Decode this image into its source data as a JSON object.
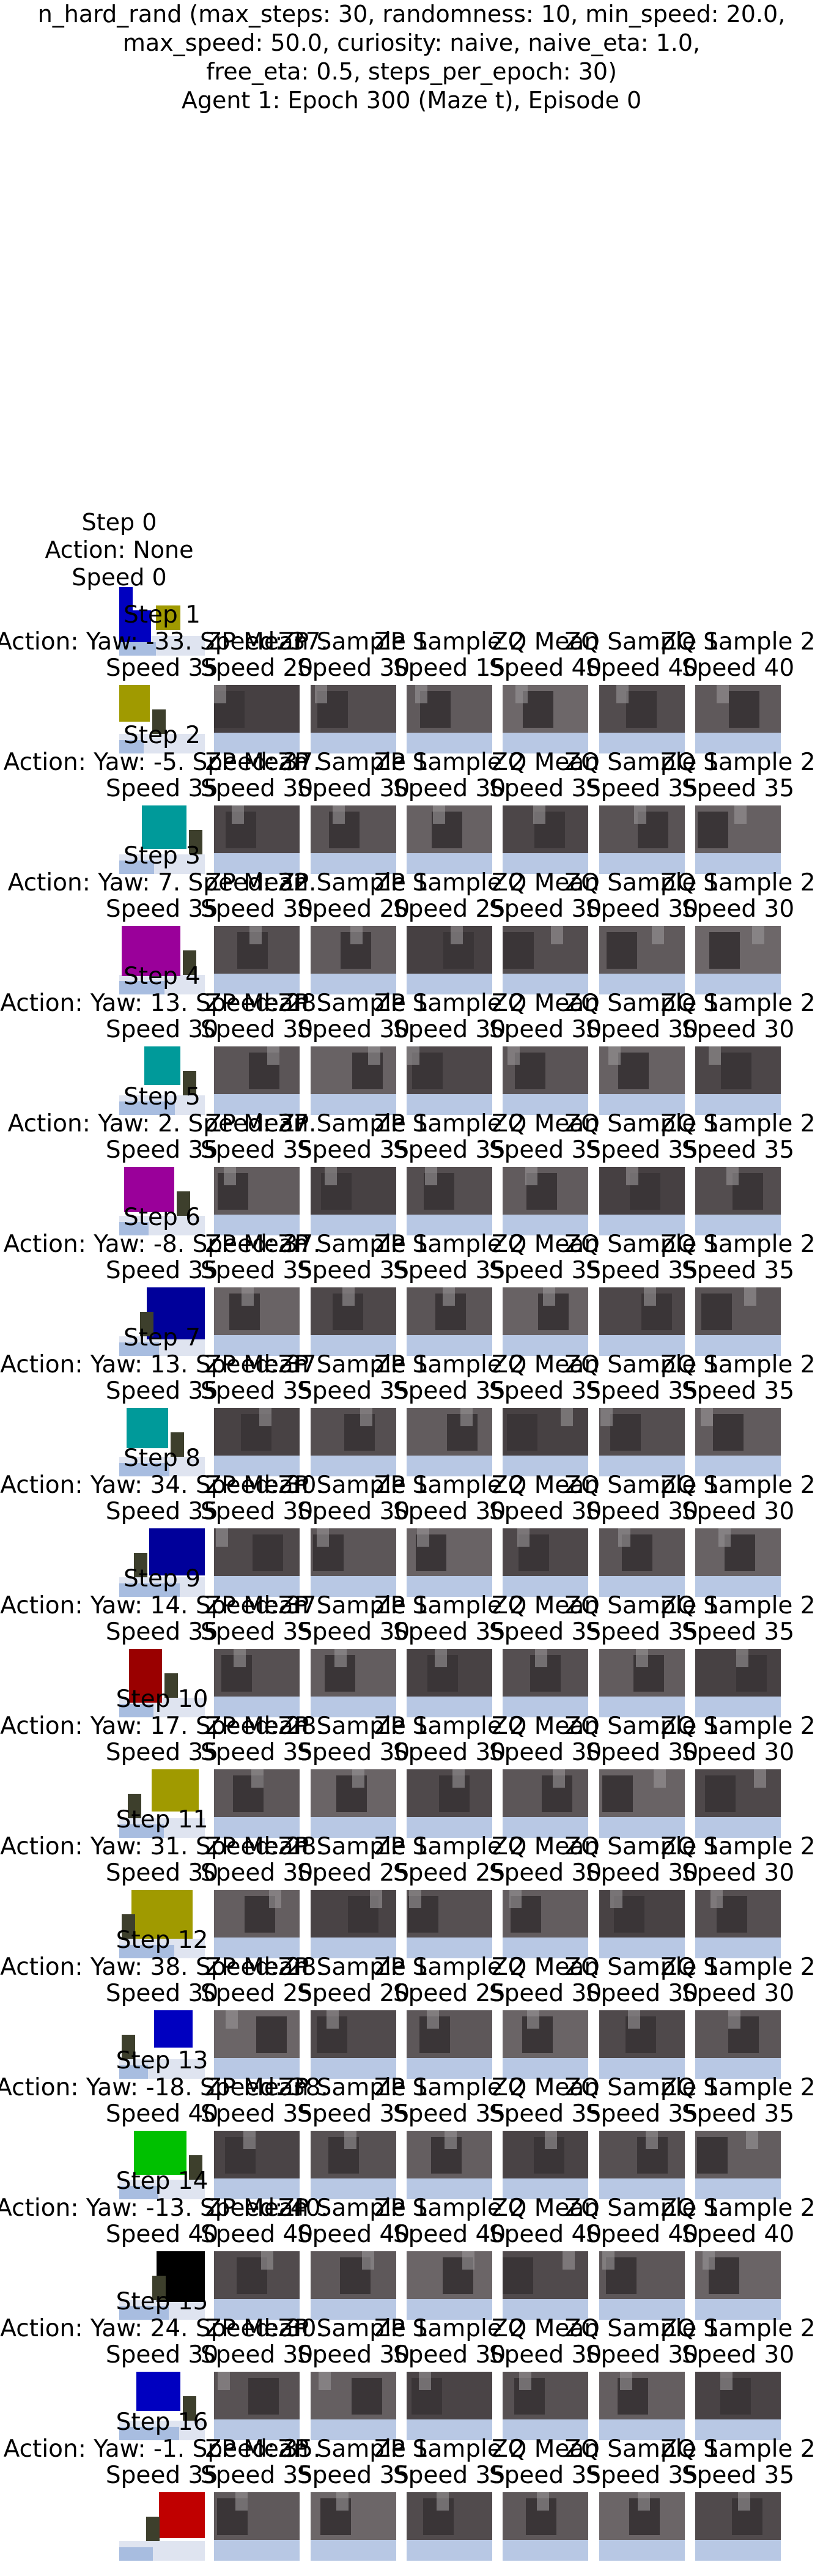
{
  "title": {
    "line1": "n_hard_rand (max_steps: 30, randomness: 10, min_speed: 20.0,",
    "line2": "max_speed: 50.0, curiosity: naive, naive_eta: 1.0,",
    "line3": "free_eta: 0.5, steps_per_epoch: 30)",
    "line4": "Agent 1: Epoch 300 (Maze t), Episode 0"
  },
  "initial": {
    "step": "Step 0",
    "action": "Action: None",
    "speed": "Speed 0"
  },
  "panel_labels": [
    "ZP Mean",
    "ZP Sample 1",
    "ZP Sample 2",
    "ZQ Mean",
    "ZQ Sample 1",
    "ZQ Sample 2"
  ],
  "steps": [
    {
      "step": "Step 1",
      "action": "Action: Yaw: -33. Speed: 37.",
      "speed": "Speed 35",
      "preds": [
        "Speed 20",
        "Speed 30",
        "Speed 15",
        "Speed 40",
        "Speed 40",
        "Speed 40"
      ],
      "block_color": "#a09a00"
    },
    {
      "step": "Step 2",
      "action": "Action: Yaw: -5. Speed: 37.",
      "speed": "Speed 35",
      "preds": [
        "Speed 30",
        "Speed 30",
        "Speed 30",
        "Speed 35",
        "Speed 35",
        "Speed 35"
      ],
      "block_color": "#009a9a"
    },
    {
      "step": "Step 3",
      "action": "Action: Yaw: 7. Speed: 32.",
      "speed": "Speed 35",
      "preds": [
        "Speed 30",
        "Speed 20",
        "Speed 25",
        "Speed 30",
        "Speed 30",
        "Speed 30"
      ],
      "block_color": "#9a009a"
    },
    {
      "step": "Step 4",
      "action": "Action: Yaw: 13. Speed: 28.",
      "speed": "Speed 30",
      "preds": [
        "Speed 30",
        "Speed 30",
        "Speed 30",
        "Speed 30",
        "Speed 30",
        "Speed 30"
      ],
      "block_color": "#009a9a"
    },
    {
      "step": "Step 5",
      "action": "Action: Yaw: 2. Speed: 37.",
      "speed": "Speed 35",
      "preds": [
        "Speed 35",
        "Speed 35",
        "Speed 35",
        "Speed 35",
        "Speed 35",
        "Speed 35"
      ],
      "block_color": "#9a009a"
    },
    {
      "step": "Step 6",
      "action": "Action: Yaw: -8. Speed: 37.",
      "speed": "Speed 35",
      "preds": [
        "Speed 35",
        "Speed 35",
        "Speed 35",
        "Speed 35",
        "Speed 35",
        "Speed 35"
      ],
      "block_color": "#00009a"
    },
    {
      "step": "Step 7",
      "action": "Action: Yaw: 13. Speed: 37.",
      "speed": "Speed 35",
      "preds": [
        "Speed 35",
        "Speed 35",
        "Speed 35",
        "Speed 35",
        "Speed 35",
        "Speed 35"
      ],
      "block_color": "#009a9a"
    },
    {
      "step": "Step 8",
      "action": "Action: Yaw: 34. Speed: 30.",
      "speed": "Speed 35",
      "preds": [
        "Speed 30",
        "Speed 30",
        "Speed 30",
        "Speed 30",
        "Speed 30",
        "Speed 30"
      ],
      "block_color": "#00009a"
    },
    {
      "step": "Step 9",
      "action": "Action: Yaw: 14. Speed: 37.",
      "speed": "Speed 35",
      "preds": [
        "Speed 35",
        "Speed 30",
        "Speed 35",
        "Speed 35",
        "Speed 35",
        "Speed 35"
      ],
      "block_color": "#9a0000"
    },
    {
      "step": "Step 10",
      "action": "Action: Yaw: 17. Speed: 28.",
      "speed": "Speed 35",
      "preds": [
        "Speed 35",
        "Speed 30",
        "Speed 30",
        "Speed 30",
        "Speed 30",
        "Speed 30"
      ],
      "block_color": "#a09a00"
    },
    {
      "step": "Step 11",
      "action": "Action: Yaw: 31. Speed: 28.",
      "speed": "Speed 30",
      "preds": [
        "Speed 30",
        "Speed 25",
        "Speed 25",
        "Speed 30",
        "Speed 30",
        "Speed 30"
      ],
      "block_color": "#a09a00"
    },
    {
      "step": "Step 12",
      "action": "Action: Yaw: 38. Speed: 28.",
      "speed": "Speed 30",
      "preds": [
        "Speed 25",
        "Speed 20",
        "Speed 25",
        "Speed 30",
        "Speed 30",
        "Speed 30"
      ],
      "block_color": "#0000c0"
    },
    {
      "step": "Step 13",
      "action": "Action: Yaw: -18. Speed: 38.",
      "speed": "Speed 40",
      "preds": [
        "Speed 35",
        "Speed 35",
        "Speed 35",
        "Speed 35",
        "Speed 35",
        "Speed 35"
      ],
      "block_color": "#00c000"
    },
    {
      "step": "Step 14",
      "action": "Action: Yaw: -13. Speed: 40.",
      "speed": "Speed 40",
      "preds": [
        "Speed 40",
        "Speed 40",
        "Speed 40",
        "Speed 40",
        "Speed 40",
        "Speed 40"
      ],
      "block_color": "#000000"
    },
    {
      "step": "Step 15",
      "action": "Action: Yaw: 24. Speed: 30.",
      "speed": "Speed 30",
      "preds": [
        "Speed 30",
        "Speed 30",
        "Speed 30",
        "Speed 30",
        "Speed 30",
        "Speed 30"
      ],
      "block_color": "#0000c0"
    },
    {
      "step": "Step 16",
      "action": "Action: Yaw: -1. Speed: 35.",
      "speed": "Speed 35",
      "preds": [
        "Speed 35",
        "Speed 35",
        "Speed 35",
        "Speed 35",
        "Speed 35",
        "Speed 35"
      ],
      "block_color": "#c00000"
    }
  ]
}
